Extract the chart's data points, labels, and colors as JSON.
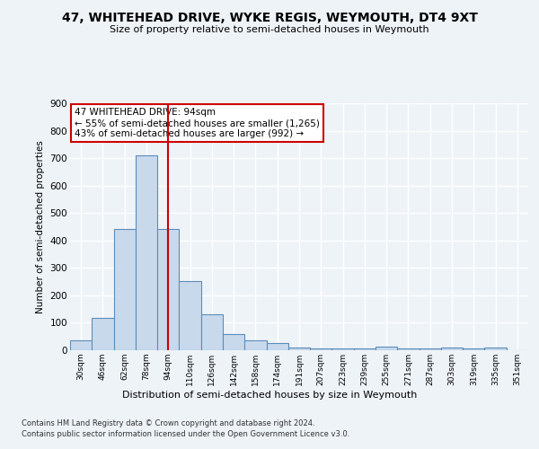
{
  "title": "47, WHITEHEAD DRIVE, WYKE REGIS, WEYMOUTH, DT4 9XT",
  "subtitle": "Size of property relative to semi-detached houses in Weymouth",
  "xlabel": "Distribution of semi-detached houses by size in Weymouth",
  "ylabel": "Number of semi-detached properties",
  "categories": [
    "30sqm",
    "46sqm",
    "62sqm",
    "78sqm",
    "94sqm",
    "110sqm",
    "126sqm",
    "142sqm",
    "158sqm",
    "174sqm",
    "191sqm",
    "207sqm",
    "223sqm",
    "239sqm",
    "255sqm",
    "271sqm",
    "287sqm",
    "303sqm",
    "319sqm",
    "335sqm",
    "351sqm"
  ],
  "values": [
    35,
    117,
    443,
    710,
    443,
    253,
    132,
    58,
    35,
    27,
    10,
    5,
    5,
    5,
    12,
    5,
    5,
    10,
    5,
    10,
    0
  ],
  "bar_color": "#c9d9ec",
  "bar_edge_color": "#5b8db8",
  "vline_x": 4,
  "vline_color": "#cc0000",
  "annotation_text": "47 WHITEHEAD DRIVE: 94sqm\n← 55% of semi-detached houses are smaller (1,265)\n43% of semi-detached houses are larger (992) →",
  "annotation_box_color": "#ffffff",
  "annotation_box_edge": "#cc0000",
  "ylim": [
    0,
    900
  ],
  "yticks": [
    0,
    100,
    200,
    300,
    400,
    500,
    600,
    700,
    800,
    900
  ],
  "footer_line1": "Contains HM Land Registry data © Crown copyright and database right 2024.",
  "footer_line2": "Contains public sector information licensed under the Open Government Licence v3.0.",
  "bg_color": "#eef3f8",
  "plot_bg_color": "#eef3f8",
  "grid_color": "#ffffff"
}
